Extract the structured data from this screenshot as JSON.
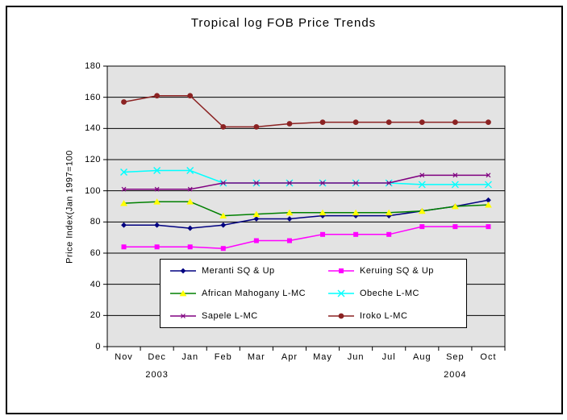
{
  "page": {
    "background_color": "#FFFFFF",
    "frame_border_color": "#000000"
  },
  "chart_data": {
    "type": "line",
    "title": "Tropical log FOB Price Trends",
    "ylabel": "Price Index(Jan 1997=100",
    "xlabel": "",
    "categories": [
      "Nov",
      "Dec",
      "Jan",
      "Feb",
      "Mar",
      "Apr",
      "May",
      "Jun",
      "Jul",
      "Aug",
      "Sep",
      "Oct"
    ],
    "year_labels": [
      {
        "text": "2003",
        "category": "Dec"
      },
      {
        "text": "2004",
        "category": "Sep"
      }
    ],
    "ylim": [
      0,
      180
    ],
    "yticks": [
      0,
      20,
      40,
      60,
      80,
      100,
      120,
      140,
      160,
      180
    ],
    "grid": "horizontal",
    "plot_bg": "#E3E3E3",
    "grid_color": "#000000",
    "axis_color": "#000000",
    "legend_position": "inside-bottom",
    "legend_bg": "#FFFFFF",
    "legend_border": "#000000",
    "series": [
      {
        "name": "Meranti SQ & Up",
        "color": "#000080",
        "marker": "diamond",
        "marker_color": "#000080",
        "values": [
          78,
          78,
          76,
          78,
          82,
          82,
          84,
          84,
          84,
          87,
          90,
          94
        ]
      },
      {
        "name": "Keruing SQ & Up",
        "color": "#FF00FF",
        "marker": "square",
        "marker_color": "#FF00FF",
        "values": [
          64,
          64,
          64,
          63,
          68,
          68,
          72,
          72,
          72,
          77,
          77,
          77
        ]
      },
      {
        "name": "African Mahogany L-MC",
        "color": "#008000",
        "marker": "triangle",
        "marker_color": "#FFFF00",
        "values": [
          92,
          93,
          93,
          84,
          85,
          86,
          86,
          86,
          86,
          87,
          90,
          91
        ]
      },
      {
        "name": "Obeche L-MC",
        "color": "#00FFFF",
        "marker": "x-cross",
        "marker_color": "#00FFFF",
        "values": [
          112,
          113,
          113,
          105,
          105,
          105,
          105,
          105,
          105,
          104,
          104,
          104
        ]
      },
      {
        "name": "Sapele L-MC",
        "color": "#800080",
        "marker": "small-x",
        "marker_color": "#800080",
        "values": [
          101,
          101,
          101,
          105,
          105,
          105,
          105,
          105,
          105,
          110,
          110,
          110
        ]
      },
      {
        "name": "Iroko L-MC",
        "color": "#8B2222",
        "marker": "circle",
        "marker_color": "#8B2222",
        "values": [
          157,
          161,
          161,
          141,
          141,
          143,
          144,
          144,
          144,
          144,
          144,
          144
        ]
      }
    ]
  }
}
